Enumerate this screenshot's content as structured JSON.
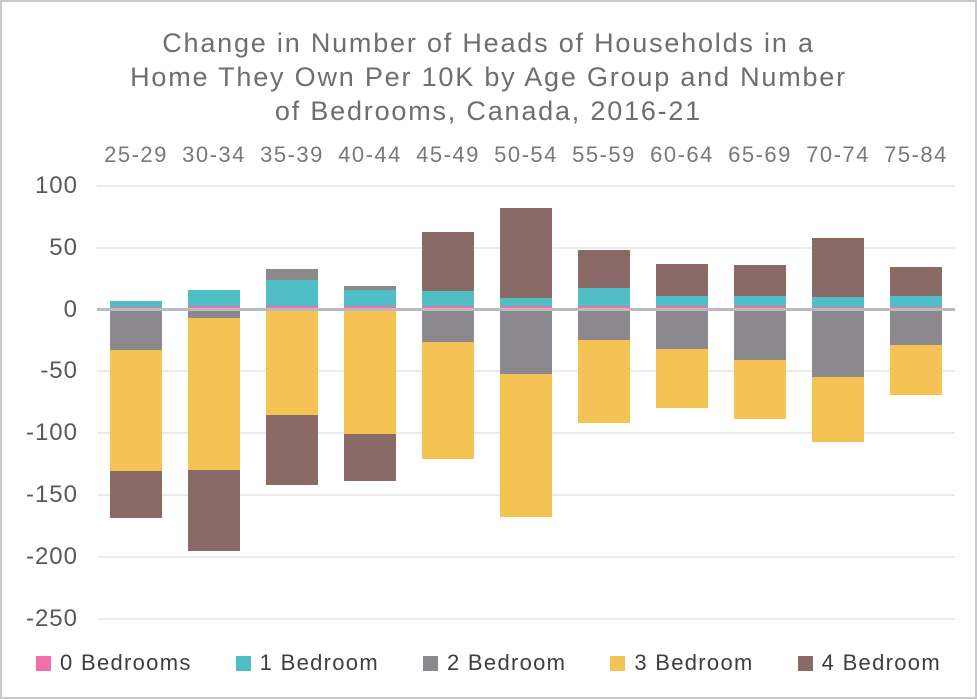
{
  "title": {
    "lines": [
      "Change in Number of Heads of Households in a",
      "Home They Own Per 10K by Age Group and Number",
      "of Bedrooms, Canada, 2016-21"
    ]
  },
  "chart_data": {
    "type": "bar",
    "stacked": true,
    "title": "Change in Number of Heads of Households in a Home They Own Per 10K by Age Group and Number of Bedrooms, Canada, 2016-21",
    "xlabel": "",
    "ylabel": "",
    "categories": [
      "25-29",
      "30-34",
      "35-39",
      "40-44",
      "45-49",
      "50-54",
      "55-59",
      "60-64",
      "65-69",
      "70-74",
      "75-84"
    ],
    "series": [
      {
        "name": "0 Bedrooms",
        "color": "#f06ea9",
        "values": [
          2,
          3,
          3,
          3,
          3,
          3,
          3,
          3,
          3,
          2,
          2
        ]
      },
      {
        "name": "1 Bedroom",
        "color": "#4fbec5",
        "values": [
          5,
          13,
          21,
          13,
          12,
          6,
          14,
          8,
          8,
          8,
          9
        ]
      },
      {
        "name": "2 Bedroom",
        "color": "#8b898e",
        "values": [
          -33,
          -7,
          9,
          3,
          -26,
          -52,
          -25,
          -32,
          -41,
          -55,
          -29
        ]
      },
      {
        "name": "3 Bedroom",
        "color": "#f5c353",
        "values": [
          -98,
          -123,
          -85,
          -101,
          -95,
          -116,
          -67,
          -48,
          -48,
          -52,
          -40
        ]
      },
      {
        "name": "4 Bedroom",
        "color": "#8a6a66",
        "values": [
          -38,
          -65,
          -57,
          -38,
          48,
          73,
          31,
          26,
          25,
          48,
          23
        ]
      }
    ],
    "y_ticks": [
      100,
      50,
      0,
      -50,
      -100,
      -150,
      -200,
      -250
    ],
    "ylim": [
      -250,
      100
    ],
    "grid": true,
    "legend_position": "bottom"
  },
  "colors": {
    "background": "#ffffff",
    "border": "#c8c9cb",
    "gridline": "#ebebeb",
    "zero_line": "#b9babc",
    "title_text": "#6d6e71",
    "axis_text": "#58595b",
    "category_text": "#77787a",
    "legend_text": "#3d3e40"
  }
}
